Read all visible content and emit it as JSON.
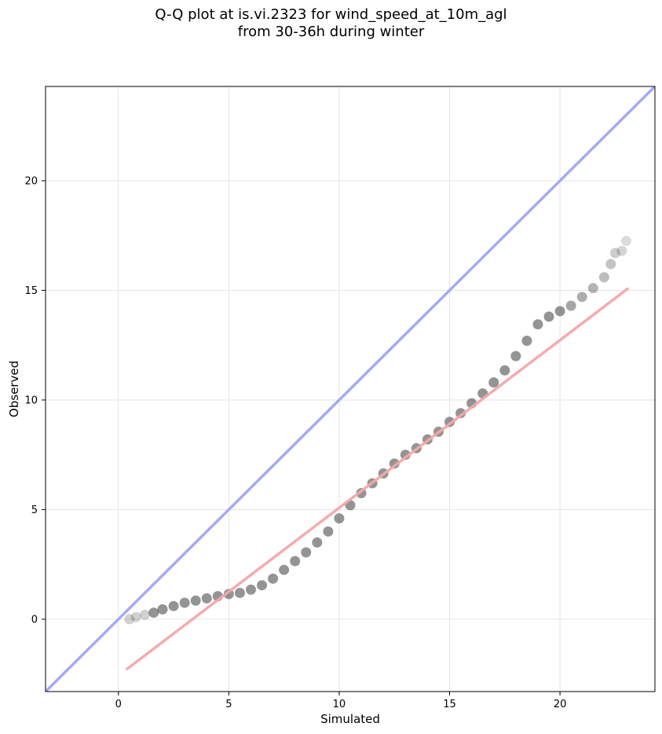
{
  "title": {
    "line1": "Q-Q plot at is.vi.2323 for wind_speed_at_10m_agl",
    "line2": "from 30-36h during winter"
  },
  "chart_data": {
    "type": "scatter",
    "xlabel": "Simulated",
    "ylabel": "Observed",
    "xlim": [
      -3.3,
      24.3
    ],
    "ylim": [
      -3.3,
      24.3
    ],
    "xticks": [
      0,
      5,
      10,
      15,
      20
    ],
    "yticks": [
      0,
      5,
      10,
      15,
      20
    ],
    "xtick_labels": [
      "0",
      "5",
      "10",
      "15",
      "20"
    ],
    "ytick_labels": [
      "0",
      "5",
      "10",
      "15",
      "20"
    ],
    "grid": true,
    "series": [
      {
        "kind": "quantiles",
        "color": "#000000",
        "points": [
          [
            0.5,
            0.0
          ],
          [
            0.8,
            0.1
          ],
          [
            1.2,
            0.2
          ],
          [
            1.6,
            0.3
          ],
          [
            2.0,
            0.45
          ],
          [
            2.5,
            0.6
          ],
          [
            3.0,
            0.75
          ],
          [
            3.5,
            0.85
          ],
          [
            4.0,
            0.95
          ],
          [
            4.5,
            1.05
          ],
          [
            5.0,
            1.15
          ],
          [
            5.5,
            1.2
          ],
          [
            6.0,
            1.35
          ],
          [
            6.5,
            1.55
          ],
          [
            7.0,
            1.85
          ],
          [
            7.5,
            2.25
          ],
          [
            8.0,
            2.65
          ],
          [
            8.5,
            3.05
          ],
          [
            9.0,
            3.5
          ],
          [
            9.5,
            4.0
          ],
          [
            10.0,
            4.6
          ],
          [
            10.5,
            5.2
          ],
          [
            11.0,
            5.75
          ],
          [
            11.5,
            6.2
          ],
          [
            12.0,
            6.65
          ],
          [
            12.5,
            7.1
          ],
          [
            13.0,
            7.5
          ],
          [
            13.5,
            7.8
          ],
          [
            14.0,
            8.2
          ],
          [
            14.5,
            8.55
          ],
          [
            15.0,
            9.0
          ],
          [
            15.5,
            9.4
          ],
          [
            16.0,
            9.85
          ],
          [
            16.5,
            10.3
          ],
          [
            17.0,
            10.8
          ],
          [
            17.5,
            11.35
          ],
          [
            18.0,
            12.0
          ],
          [
            18.5,
            12.7
          ],
          [
            19.0,
            13.45
          ],
          [
            19.5,
            13.8
          ],
          [
            20.0,
            14.05
          ],
          [
            20.5,
            14.3
          ],
          [
            21.0,
            14.7
          ],
          [
            21.5,
            15.1
          ],
          [
            22.0,
            15.6
          ],
          [
            22.3,
            16.2
          ],
          [
            22.5,
            16.7
          ],
          [
            22.8,
            16.8
          ],
          [
            23.0,
            17.25
          ]
        ]
      },
      {
        "kind": "fit-line",
        "color": "#f4a6a6",
        "points": [
          [
            0.35,
            -2.3
          ],
          [
            23.1,
            15.1
          ]
        ]
      },
      {
        "kind": "identity-line",
        "color": "#a6a9f4",
        "points": [
          [
            -3.3,
            -3.3
          ],
          [
            24.3,
            24.3
          ]
        ]
      }
    ]
  }
}
